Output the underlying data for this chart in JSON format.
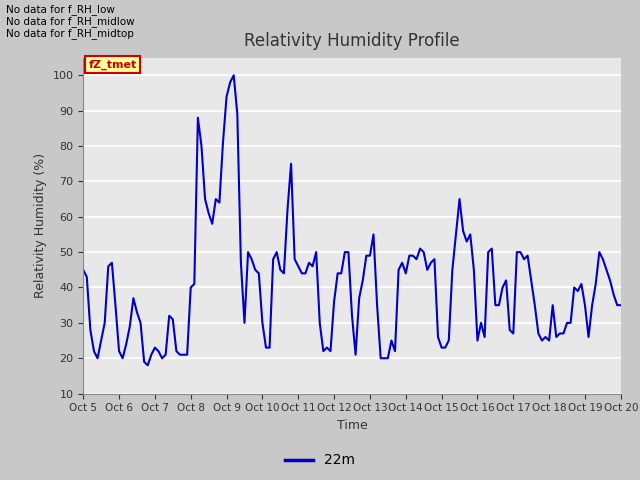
{
  "title": "Relativity Humidity Profile",
  "xlabel": "Time",
  "ylabel": "Relativity Humidity (%)",
  "ylim": [
    10,
    105
  ],
  "yticks": [
    10,
    20,
    30,
    40,
    50,
    60,
    70,
    80,
    90,
    100
  ],
  "line_color": "#0000CC",
  "line_label": "22m",
  "fig_bg_color": "#C8C8C8",
  "plot_bg_color": "#E8E8E8",
  "grid_color": "#FFFFFF",
  "annotations_left": [
    "No data for f_RH_low",
    "No data for f_RH_midlow",
    "No data for f_RH_midtop"
  ],
  "legend_label_color": "#CC0000",
  "legend_label_text": "fZ_tmet",
  "legend_label_bg": "#FFFF99",
  "x_tick_labels": [
    "Oct 5",
    "Oct 6",
    "Oct 7",
    "Oct 8",
    "Oct 9",
    "Oct 10",
    "Oct 11",
    "Oct 12",
    "Oct 13",
    "Oct 14",
    "Oct 15",
    "Oct 16",
    "Oct 17",
    "Oct 18",
    "Oct 19",
    "Oct 20"
  ],
  "x_values": [
    0,
    0.1,
    0.2,
    0.3,
    0.4,
    0.5,
    0.6,
    0.7,
    0.8,
    0.9,
    1.0,
    1.1,
    1.2,
    1.3,
    1.4,
    1.5,
    1.6,
    1.7,
    1.8,
    1.9,
    2.0,
    2.1,
    2.2,
    2.3,
    2.4,
    2.5,
    2.6,
    2.7,
    2.8,
    2.9,
    3.0,
    3.1,
    3.2,
    3.3,
    3.4,
    3.5,
    3.6,
    3.7,
    3.8,
    3.9,
    4.0,
    4.1,
    4.2,
    4.3,
    4.4,
    4.5,
    4.6,
    4.7,
    4.8,
    4.9,
    5.0,
    5.1,
    5.2,
    5.3,
    5.4,
    5.5,
    5.6,
    5.7,
    5.8,
    5.9,
    6.0,
    6.1,
    6.2,
    6.3,
    6.4,
    6.5,
    6.6,
    6.7,
    6.8,
    6.9,
    7.0,
    7.1,
    7.2,
    7.3,
    7.4,
    7.5,
    7.6,
    7.7,
    7.8,
    7.9,
    8.0,
    8.1,
    8.2,
    8.3,
    8.4,
    8.5,
    8.6,
    8.7,
    8.8,
    8.9,
    9.0,
    9.1,
    9.2,
    9.3,
    9.4,
    9.5,
    9.6,
    9.7,
    9.8,
    9.9,
    10.0,
    10.1,
    10.2,
    10.3,
    10.4,
    10.5,
    10.6,
    10.7,
    10.8,
    10.9,
    11.0,
    11.1,
    11.2,
    11.3,
    11.4,
    11.5,
    11.6,
    11.7,
    11.8,
    11.9,
    12.0,
    12.1,
    12.2,
    12.3,
    12.4,
    12.5,
    12.6,
    12.7,
    12.8,
    12.9,
    13.0,
    13.1,
    13.2,
    13.3,
    13.4,
    13.5,
    13.6,
    13.7,
    13.8,
    13.9,
    14.0,
    14.1,
    14.2,
    14.3,
    14.4,
    14.5,
    14.6,
    14.7,
    14.8,
    14.9,
    15.0
  ],
  "y_values": [
    45,
    43,
    28,
    22,
    20,
    25,
    30,
    46,
    47,
    35,
    22,
    20,
    24,
    29,
    37,
    33,
    30,
    19,
    18,
    21,
    23,
    22,
    20,
    21,
    32,
    31,
    22,
    21,
    21,
    21,
    40,
    41,
    88,
    80,
    65,
    61,
    58,
    65,
    64,
    81,
    94,
    98,
    100,
    89,
    47,
    30,
    50,
    48,
    45,
    44,
    30,
    23,
    23,
    48,
    50,
    45,
    44,
    62,
    75,
    48,
    46,
    44,
    44,
    47,
    46,
    50,
    30,
    22,
    23,
    22,
    36,
    44,
    44,
    50,
    50,
    32,
    21,
    37,
    42,
    49,
    49,
    55,
    35,
    20,
    20,
    20,
    25,
    22,
    45,
    47,
    44,
    49,
    49,
    48,
    51,
    50,
    45,
    47,
    48,
    26,
    23,
    23,
    25,
    45,
    55,
    65,
    56,
    53,
    55,
    45,
    25,
    30,
    26,
    50,
    51,
    35,
    35,
    40,
    42,
    28,
    27,
    50,
    50,
    48,
    49,
    42,
    35,
    27,
    25,
    26,
    25,
    35,
    26,
    27,
    27,
    30,
    30,
    40,
    39,
    41,
    35,
    26,
    35,
    41,
    50,
    48,
    45,
    42,
    38,
    35,
    35
  ]
}
